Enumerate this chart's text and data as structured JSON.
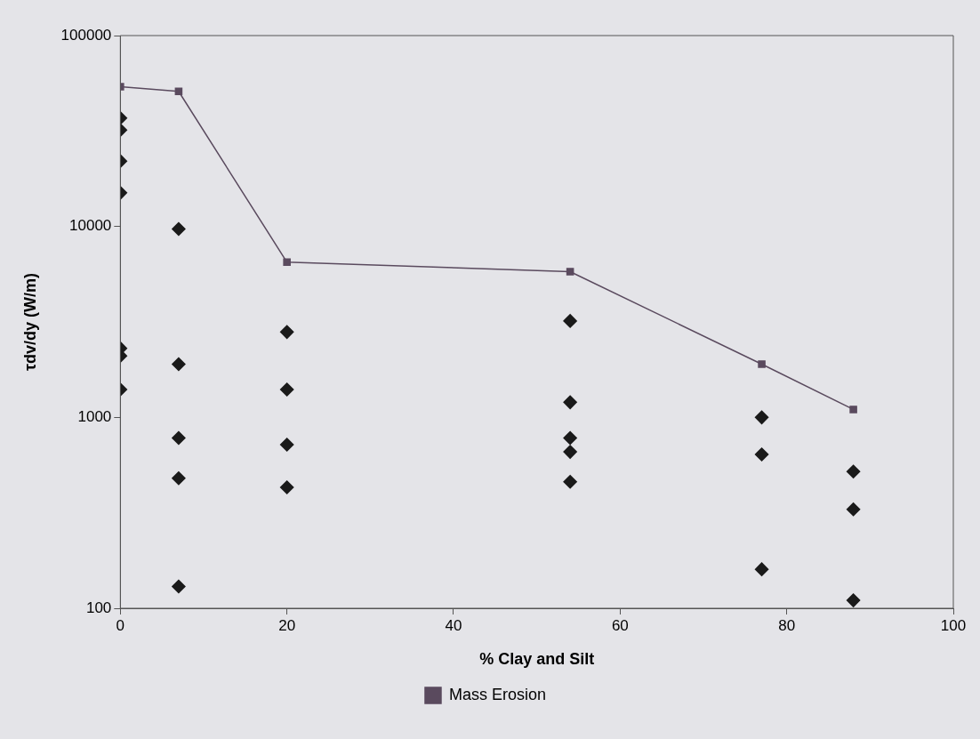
{
  "chart_data": {
    "type": "scatter",
    "xlabel": "% Clay and Silt",
    "ylabel": "τdv/dy (W/m)",
    "log": "y",
    "xlim": [
      0,
      100
    ],
    "xticks": [
      0,
      20,
      40,
      60,
      80,
      100
    ],
    "ylim": [
      100,
      100000
    ],
    "yticks": [
      100,
      1000,
      10000,
      100000
    ],
    "legend": "bottom",
    "series": [
      {
        "color": "#1a1a1a",
        "marker": "diamond",
        "x": [
          0,
          0,
          0,
          0,
          0,
          0,
          0,
          7,
          7,
          7,
          7,
          7,
          20,
          20,
          20,
          20,
          54,
          54,
          54,
          54,
          54,
          77,
          77,
          77,
          88,
          88,
          88
        ],
        "values": [
          37000,
          32000,
          22000,
          15000,
          2300,
          2100,
          1400,
          9700,
          1900,
          780,
          480,
          130,
          2800,
          1400,
          720,
          430,
          3200,
          1200,
          780,
          660,
          460,
          1000,
          640,
          160,
          520,
          330,
          110
        ]
      },
      {
        "type": "line",
        "name": "Mass Erosion",
        "color": "#5a4a5e",
        "marker": "square",
        "x": [
          0,
          7,
          20,
          54,
          77,
          88
        ],
        "values": [
          54000,
          51000,
          6500,
          5800,
          1900,
          1100
        ]
      }
    ]
  }
}
